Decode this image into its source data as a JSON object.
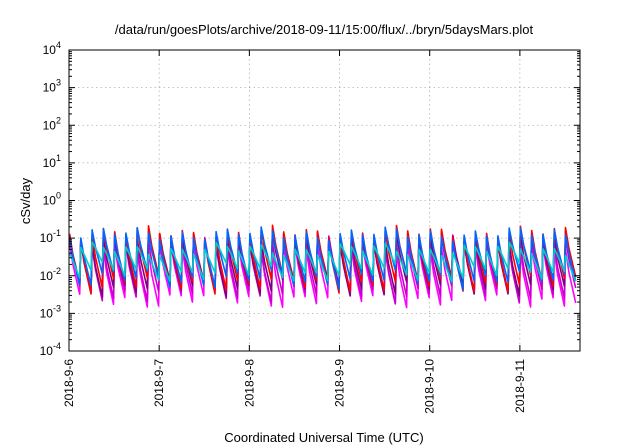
{
  "chart_data": {
    "type": "line",
    "title": "/data/run/goesPlots/archive/2018-09-11/15:00/flux/../bryn/5daysMars.plot",
    "xlabel": "Coordinated Universal Time (UTC)",
    "ylabel": "cSv/day",
    "yscale": "log",
    "ylim": [
      0.0001,
      10000
    ],
    "xlim": [
      "2018-09-06T00:00",
      "2018-09-11T16:00"
    ],
    "x_ticks": [
      "2018-9-6",
      "2018-9-7",
      "2018-9-8",
      "2018-9-9",
      "2018-9-10",
      "2018-9-11"
    ],
    "y_ticks": [
      {
        "base": "10",
        "exp": "4"
      },
      {
        "base": "10",
        "exp": "3"
      },
      {
        "base": "10",
        "exp": "2"
      },
      {
        "base": "10",
        "exp": "1"
      },
      {
        "base": "10",
        "exp": "0"
      },
      {
        "base": "10",
        "exp": "-1"
      },
      {
        "base": "10",
        "exp": "-2"
      },
      {
        "base": "10",
        "exp": "-3"
      },
      {
        "base": "10",
        "exp": "-4"
      }
    ],
    "grid": true,
    "periodic_pattern": {
      "cycles_per_day": 8,
      "peak_range": [
        0.05,
        0.18
      ],
      "trough_range": [
        0.002,
        0.012
      ]
    },
    "series": [
      {
        "color": "#ff00ff",
        "peak": 0.06,
        "trough": 0.0025
      },
      {
        "color": "#cc00cc",
        "peak": 0.08,
        "trough": 0.0035
      },
      {
        "color": "#800080",
        "peak": 0.1,
        "trough": 0.005
      },
      {
        "color": "#ff0000",
        "peak": 0.14,
        "trough": 0.006
      },
      {
        "color": "#0066ff",
        "peak": 0.13,
        "trough": 0.008
      },
      {
        "color": "#00cccc",
        "peak": 0.05,
        "trough": 0.012
      }
    ]
  }
}
